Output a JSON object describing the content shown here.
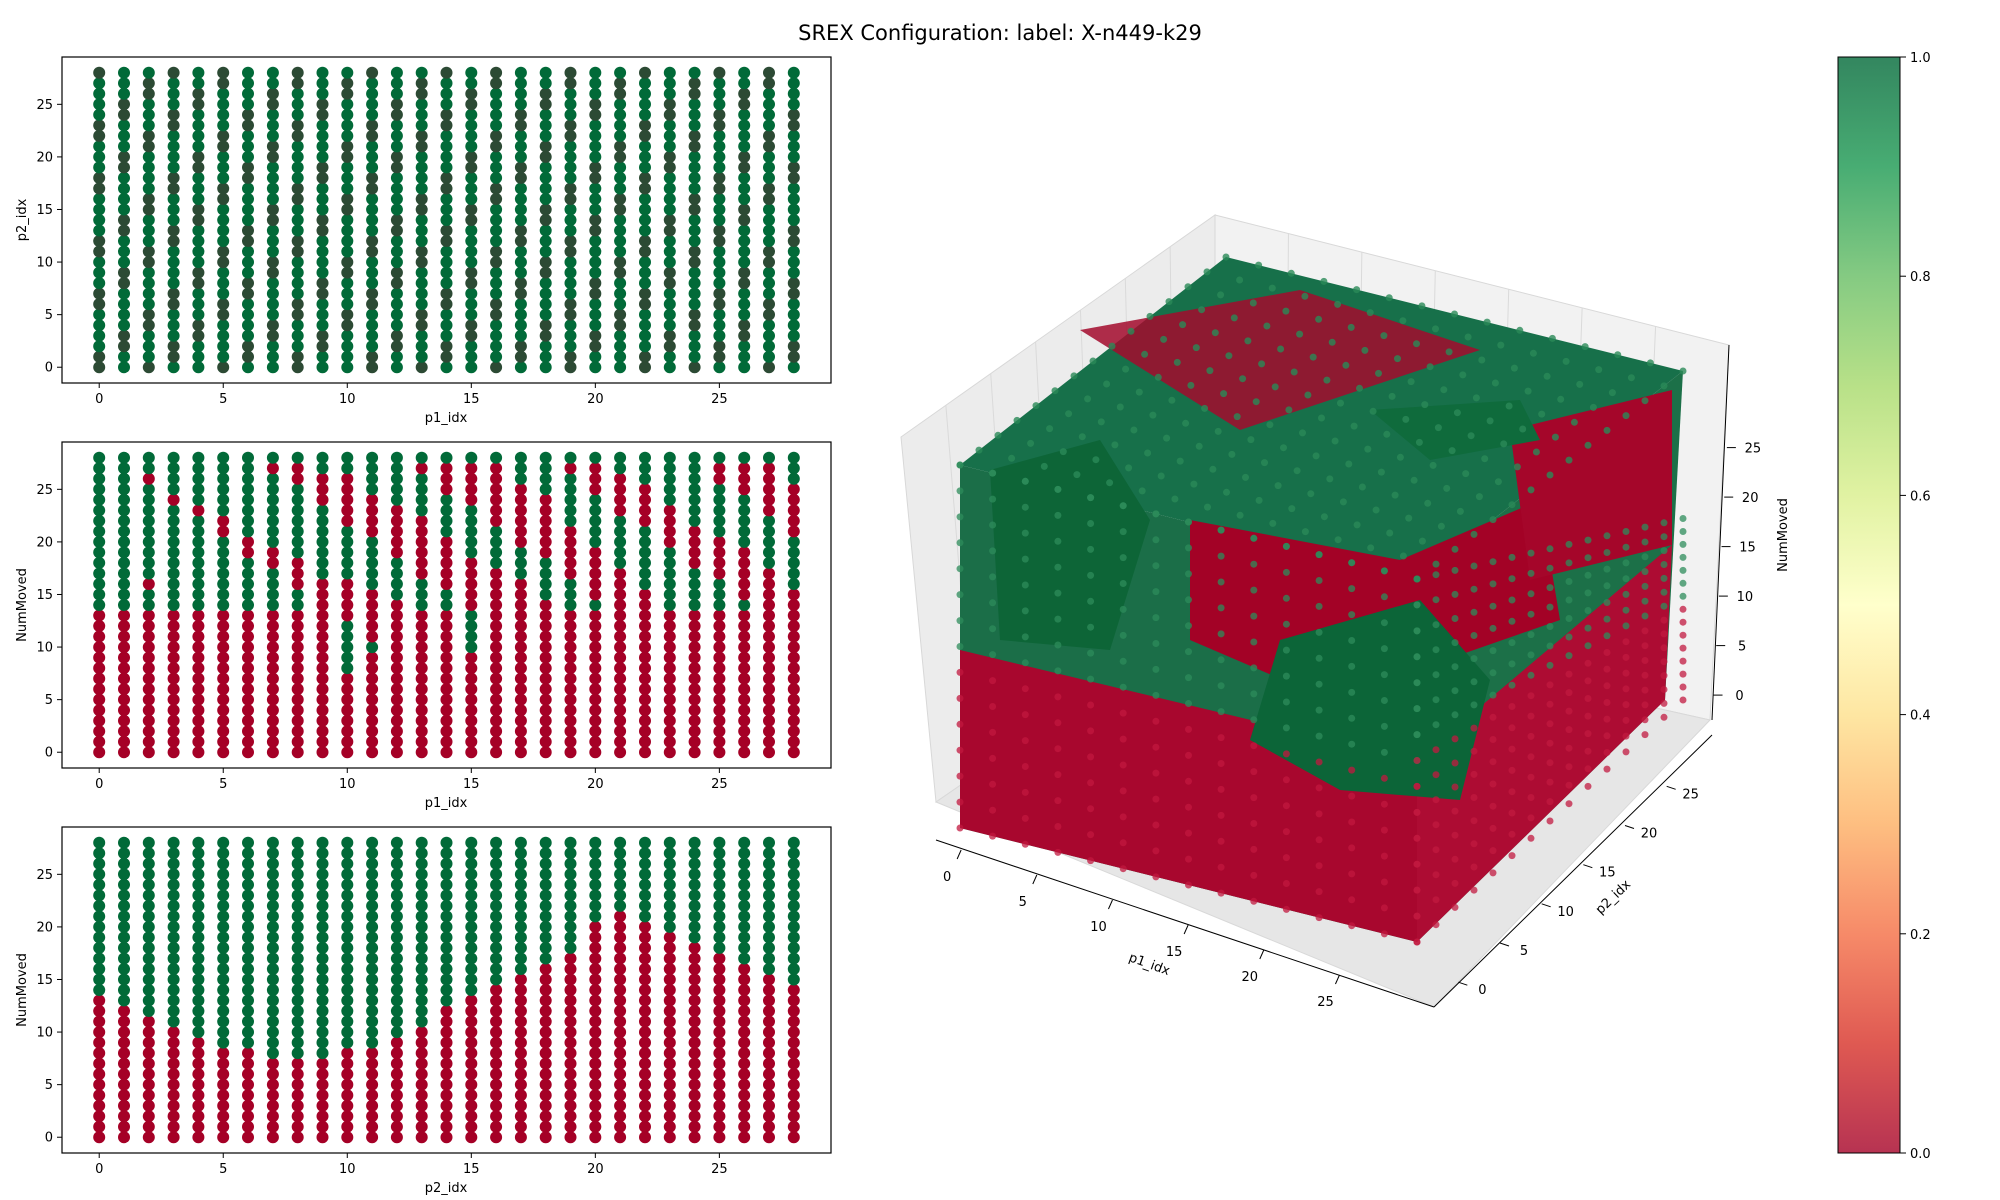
{
  "title": "SREX Configuration: label: X-n449-k29",
  "colormap": {
    "name": "RdYlGn",
    "range": [
      0.0,
      1.0
    ],
    "ticks": [
      "0.0",
      "0.2",
      "0.4",
      "0.6",
      "0.8",
      "1.0"
    ],
    "stops": [
      "#a50026",
      "#d73027",
      "#f46d43",
      "#fdae61",
      "#fee08b",
      "#ffffbf",
      "#d9ef8b",
      "#a6d96a",
      "#66bd63",
      "#1a9850",
      "#006837"
    ],
    "alpha": 0.8
  },
  "chart_data": [
    {
      "type": "scatter",
      "xlabel": "p1_idx",
      "ylabel": "p2_idx",
      "xticks": [
        "0",
        "5",
        "10",
        "15",
        "20",
        "25"
      ],
      "yticks": [
        "0",
        "5",
        "10",
        "15",
        "20",
        "25"
      ],
      "xlim": [
        -1.5,
        29.5
      ],
      "ylim": [
        -1.5,
        29.5
      ],
      "x_values": "integers 0-28",
      "y_values": "integers 0-28",
      "description": "29 x 29 grid of points; nearly all points green (value 1), a few dark red points overplotted"
    },
    {
      "type": "scatter",
      "xlabel": "p1_idx",
      "ylabel": "NumMoved",
      "xticks": [
        "0",
        "5",
        "10",
        "15",
        "20",
        "25"
      ],
      "yticks": [
        "0",
        "5",
        "10",
        "15",
        "20",
        "25"
      ],
      "xlim": [
        -1.5,
        29.5
      ],
      "ylim": [
        -1.5,
        29.5
      ],
      "green_from_numMoved_by_p1_idx": [
        14,
        14,
        14,
        14,
        14,
        14,
        14,
        14,
        14,
        14,
        8,
        10,
        10,
        14,
        14,
        10,
        14,
        14,
        14,
        14,
        14,
        14,
        14,
        14,
        14,
        14,
        14,
        14,
        14
      ],
      "red_above_threshold_by_p1_idx": [
        0,
        1,
        3,
        1,
        3,
        5,
        5,
        6,
        8,
        8,
        13,
        14,
        16,
        17,
        16,
        16,
        17,
        18,
        18,
        14,
        14,
        12,
        12,
        12,
        12,
        14,
        14,
        14,
        14
      ],
      "description": "Lower band (NumMoved 0-13) red, upper band green with red intrusions; top row green"
    },
    {
      "type": "scatter",
      "xlabel": "p2_idx",
      "ylabel": "NumMoved",
      "xticks": [
        "0",
        "5",
        "10",
        "15",
        "20",
        "25"
      ],
      "yticks": [
        "0",
        "5",
        "10",
        "15",
        "20",
        "25"
      ],
      "xlim": [
        -1.5,
        29.5
      ],
      "ylim": [
        -1.5,
        29.5
      ],
      "red_top_by_p2_idx": [
        13,
        12,
        11,
        10,
        9,
        8,
        8,
        7,
        7,
        7,
        8,
        8,
        9,
        10,
        12,
        13,
        14,
        15,
        16,
        17,
        20,
        21,
        20,
        19,
        18,
        17,
        16,
        15,
        14
      ],
      "description": "Red from NumMoved 0 up to a threshold varying with p2_idx; green above; top row green"
    },
    {
      "type": "scatter3d",
      "xlabel": "p1_idx",
      "ylabel": "p2_idx",
      "zlabel": "NumMoved",
      "xticks": [
        "0",
        "5",
        "10",
        "15",
        "20",
        "25"
      ],
      "yticks": [
        "0",
        "5",
        "10",
        "15",
        "20",
        "25"
      ],
      "zticks": [
        "0",
        "5",
        "10",
        "15",
        "20",
        "25"
      ],
      "description": "29 x 29 x 29 grid of points colored by value (0 red, 1 green); low NumMoved red, high NumMoved green with red core"
    }
  ]
}
